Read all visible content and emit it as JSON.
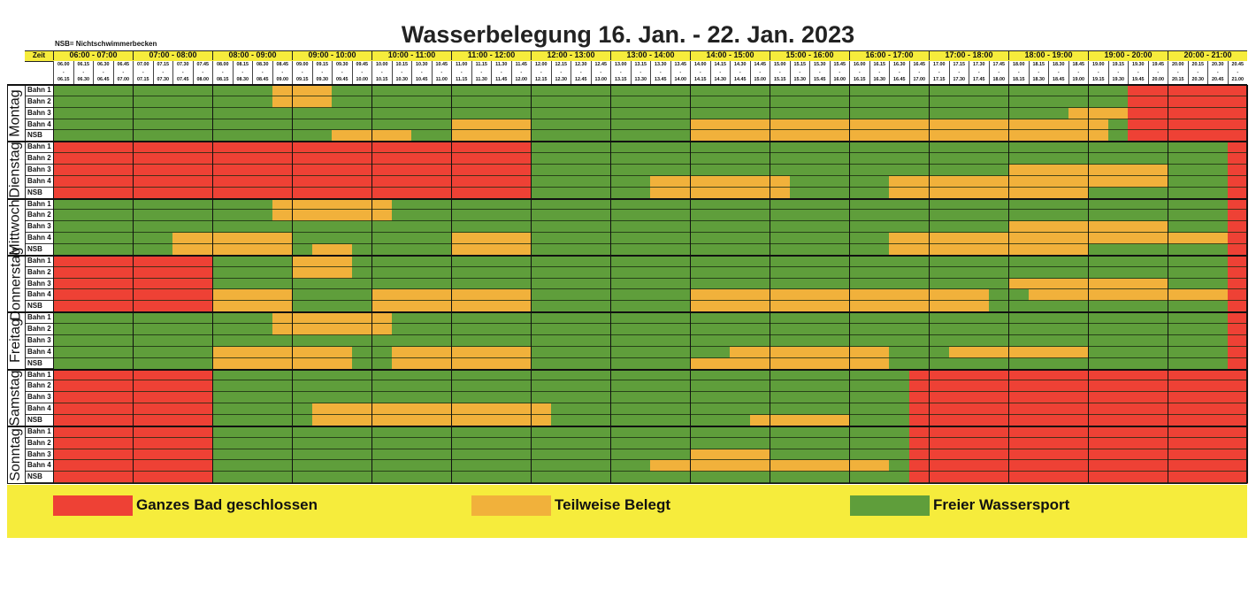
{
  "title": "Wasserbelegung 16. Jan. - 22. Jan. 2023",
  "note": "NSB= Nichtschwimmerbecken",
  "header": {
    "zeit_label": "Zeit",
    "hours": [
      "06:00 - 07:00",
      "07:00 - 08:00",
      "08:00 - 09:00",
      "09:00 - 10:00",
      "10:00 - 11:00",
      "11:00 - 12:00",
      "12:00 - 13:00",
      "13:00 - 14:00",
      "14:00 - 15:00",
      "15:00 - 16:00",
      "16:00 - 17:00",
      "17:00 - 18:00",
      "18:00 - 19:00",
      "19:00 - 20:00",
      "20:00 - 21:00"
    ],
    "slot_starts": [
      "06.00",
      "06.15",
      "06.30",
      "06.45",
      "07.00",
      "07.15",
      "07.30",
      "07.45",
      "08.00",
      "08.15",
      "08.30",
      "08.45",
      "09.00",
      "09.15",
      "09.30",
      "09.45",
      "10.00",
      "10.15",
      "10.30",
      "10.45",
      "11.00",
      "11.15",
      "11.30",
      "11.45",
      "12.00",
      "12.15",
      "12.30",
      "12.45",
      "13.00",
      "13.15",
      "13.30",
      "13.45",
      "14.00",
      "14.15",
      "14.30",
      "14.45",
      "15.00",
      "15.15",
      "15.30",
      "15.45",
      "16.00",
      "16.15",
      "16.30",
      "16.45",
      "17.00",
      "17.15",
      "17.30",
      "17.45",
      "18.00",
      "18.15",
      "18.30",
      "18.45",
      "19.00",
      "19.15",
      "19.30",
      "19.45",
      "20.00",
      "20.15",
      "20.30",
      "20.45"
    ],
    "slot_ends": [
      "06.15",
      "06.30",
      "06.45",
      "07.00",
      "07.15",
      "07.30",
      "07.45",
      "08.00",
      "08.15",
      "08.30",
      "08.45",
      "09.00",
      "09.15",
      "09.30",
      "09.45",
      "10.00",
      "10.15",
      "10.30",
      "10.45",
      "11.00",
      "11.15",
      "11.30",
      "11.45",
      "12.00",
      "12.15",
      "12.30",
      "12.45",
      "13.00",
      "13.15",
      "13.30",
      "13.45",
      "14.00",
      "14.15",
      "14.30",
      "14.45",
      "15.00",
      "15.15",
      "15.30",
      "15.45",
      "16.00",
      "16.15",
      "16.30",
      "16.45",
      "17.00",
      "17.15",
      "17.30",
      "17.45",
      "18.00",
      "18.15",
      "18.30",
      "18.45",
      "19.00",
      "19.15",
      "19.30",
      "19.45",
      "20.00",
      "20.15",
      "20.30",
      "20.45",
      "21.00"
    ]
  },
  "lanes": [
    "Bahn 1",
    "Bahn 2",
    "Bahn 3",
    "Bahn 4",
    "NSB"
  ],
  "colors": {
    "R": "#ee4135",
    "O": "#f1b13b",
    "G": "#5f9e3b",
    "background_band": "#f6ec3c"
  },
  "schedule_note": "Each lane: runs of [status, number of 15-minute slots] from 06:00 to 21:00. R = Ganzes Bad geschlossen, O = Teilweise Belegt, G = Freier Wassersport",
  "days": [
    {
      "name": "Montag",
      "rows": [
        [
          [
            "G",
            11
          ],
          [
            "O",
            3
          ],
          [
            "G",
            40
          ],
          [
            "R",
            6
          ]
        ],
        [
          [
            "G",
            11
          ],
          [
            "O",
            3
          ],
          [
            "G",
            40
          ],
          [
            "R",
            6
          ]
        ],
        [
          [
            "G",
            51
          ],
          [
            "O",
            3
          ],
          [
            "R",
            6
          ]
        ],
        [
          [
            "G",
            20
          ],
          [
            "O",
            4
          ],
          [
            "G",
            8
          ],
          [
            "O",
            21
          ],
          [
            "G",
            1
          ],
          [
            "R",
            6
          ]
        ],
        [
          [
            "G",
            14
          ],
          [
            "O",
            4
          ],
          [
            "G",
            2
          ],
          [
            "O",
            4
          ],
          [
            "G",
            8
          ],
          [
            "O",
            21
          ],
          [
            "G",
            1
          ],
          [
            "R",
            6
          ]
        ]
      ]
    },
    {
      "name": "Dienstag",
      "rows": [
        [
          [
            "R",
            24
          ],
          [
            "G",
            35
          ],
          [
            "R",
            1
          ]
        ],
        [
          [
            "R",
            24
          ],
          [
            "G",
            35
          ],
          [
            "R",
            1
          ]
        ],
        [
          [
            "R",
            24
          ],
          [
            "G",
            24
          ],
          [
            "O",
            8
          ],
          [
            "G",
            3
          ],
          [
            "R",
            1
          ]
        ],
        [
          [
            "R",
            24
          ],
          [
            "G",
            6
          ],
          [
            "O",
            7
          ],
          [
            "G",
            5
          ],
          [
            "O",
            14
          ],
          [
            "G",
            3
          ],
          [
            "R",
            1
          ]
        ],
        [
          [
            "R",
            24
          ],
          [
            "G",
            6
          ],
          [
            "O",
            7
          ],
          [
            "G",
            5
          ],
          [
            "O",
            10
          ],
          [
            "G",
            7
          ],
          [
            "R",
            1
          ]
        ]
      ]
    },
    {
      "name": "Mittwoch",
      "rows": [
        [
          [
            "G",
            11
          ],
          [
            "O",
            6
          ],
          [
            "G",
            42
          ],
          [
            "R",
            1
          ]
        ],
        [
          [
            "G",
            11
          ],
          [
            "O",
            6
          ],
          [
            "G",
            42
          ],
          [
            "R",
            1
          ]
        ],
        [
          [
            "G",
            48
          ],
          [
            "O",
            8
          ],
          [
            "G",
            3
          ],
          [
            "R",
            1
          ]
        ],
        [
          [
            "G",
            6
          ],
          [
            "O",
            6
          ],
          [
            "G",
            8
          ],
          [
            "O",
            4
          ],
          [
            "G",
            18
          ],
          [
            "O",
            17
          ],
          [
            "R",
            1
          ]
        ],
        [
          [
            "G",
            6
          ],
          [
            "O",
            6
          ],
          [
            "G",
            1
          ],
          [
            "O",
            2
          ],
          [
            "G",
            5
          ],
          [
            "O",
            4
          ],
          [
            "G",
            18
          ],
          [
            "O",
            10
          ],
          [
            "G",
            7
          ],
          [
            "R",
            1
          ]
        ]
      ]
    },
    {
      "name": "Donnerstag",
      "rows": [
        [
          [
            "R",
            8
          ],
          [
            "G",
            4
          ],
          [
            "O",
            3
          ],
          [
            "G",
            44
          ],
          [
            "R",
            1
          ]
        ],
        [
          [
            "R",
            8
          ],
          [
            "G",
            4
          ],
          [
            "O",
            3
          ],
          [
            "G",
            44
          ],
          [
            "R",
            1
          ]
        ],
        [
          [
            "R",
            8
          ],
          [
            "G",
            40
          ],
          [
            "O",
            8
          ],
          [
            "G",
            3
          ],
          [
            "R",
            1
          ]
        ],
        [
          [
            "R",
            8
          ],
          [
            "O",
            4
          ],
          [
            "G",
            4
          ],
          [
            "O",
            8
          ],
          [
            "G",
            8
          ],
          [
            "O",
            15
          ],
          [
            "G",
            2
          ],
          [
            "O",
            10
          ],
          [
            "R",
            1
          ]
        ],
        [
          [
            "R",
            8
          ],
          [
            "O",
            4
          ],
          [
            "G",
            4
          ],
          [
            "O",
            8
          ],
          [
            "G",
            8
          ],
          [
            "O",
            15
          ],
          [
            "G",
            12
          ],
          [
            "R",
            1
          ]
        ]
      ]
    },
    {
      "name": "Freitag",
      "rows": [
        [
          [
            "G",
            11
          ],
          [
            "O",
            6
          ],
          [
            "G",
            42
          ],
          [
            "R",
            1
          ]
        ],
        [
          [
            "G",
            11
          ],
          [
            "O",
            6
          ],
          [
            "G",
            42
          ],
          [
            "R",
            1
          ]
        ],
        [
          [
            "G",
            59
          ],
          [
            "R",
            1
          ]
        ],
        [
          [
            "G",
            8
          ],
          [
            "O",
            7
          ],
          [
            "G",
            2
          ],
          [
            "O",
            7
          ],
          [
            "G",
            10
          ],
          [
            "O",
            8
          ],
          [
            "G",
            3
          ],
          [
            "O",
            7
          ],
          [
            "G",
            7
          ],
          [
            "R",
            1
          ]
        ],
        [
          [
            "G",
            8
          ],
          [
            "O",
            7
          ],
          [
            "G",
            2
          ],
          [
            "O",
            7
          ],
          [
            "G",
            8
          ],
          [
            "O",
            10
          ],
          [
            "G",
            17
          ],
          [
            "R",
            1
          ]
        ]
      ]
    },
    {
      "name": "Samstag",
      "rows": [
        [
          [
            "R",
            8
          ],
          [
            "G",
            35
          ],
          [
            "R",
            17
          ]
        ],
        [
          [
            "R",
            8
          ],
          [
            "G",
            35
          ],
          [
            "R",
            17
          ]
        ],
        [
          [
            "R",
            8
          ],
          [
            "G",
            35
          ],
          [
            "R",
            17
          ]
        ],
        [
          [
            "R",
            8
          ],
          [
            "G",
            5
          ],
          [
            "O",
            12
          ],
          [
            "G",
            18
          ],
          [
            "R",
            17
          ]
        ],
        [
          [
            "R",
            8
          ],
          [
            "G",
            5
          ],
          [
            "O",
            12
          ],
          [
            "G",
            10
          ],
          [
            "O",
            5
          ],
          [
            "G",
            3
          ],
          [
            "R",
            17
          ]
        ]
      ]
    },
    {
      "name": "Sonntag",
      "rows": [
        [
          [
            "R",
            8
          ],
          [
            "G",
            35
          ],
          [
            "R",
            17
          ]
        ],
        [
          [
            "R",
            8
          ],
          [
            "G",
            35
          ],
          [
            "R",
            17
          ]
        ],
        [
          [
            "R",
            8
          ],
          [
            "G",
            24
          ],
          [
            "O",
            4
          ],
          [
            "G",
            7
          ],
          [
            "R",
            17
          ]
        ],
        [
          [
            "R",
            8
          ],
          [
            "G",
            22
          ],
          [
            "O",
            12
          ],
          [
            "G",
            1
          ],
          [
            "R",
            17
          ]
        ],
        [
          [
            "R",
            8
          ],
          [
            "G",
            35
          ],
          [
            "R",
            17
          ]
        ]
      ]
    }
  ],
  "legend": [
    {
      "key": "R",
      "label": "Ganzes Bad geschlossen"
    },
    {
      "key": "O",
      "label": "Teilweise Belegt"
    },
    {
      "key": "G",
      "label": "Freier Wassersport"
    }
  ]
}
